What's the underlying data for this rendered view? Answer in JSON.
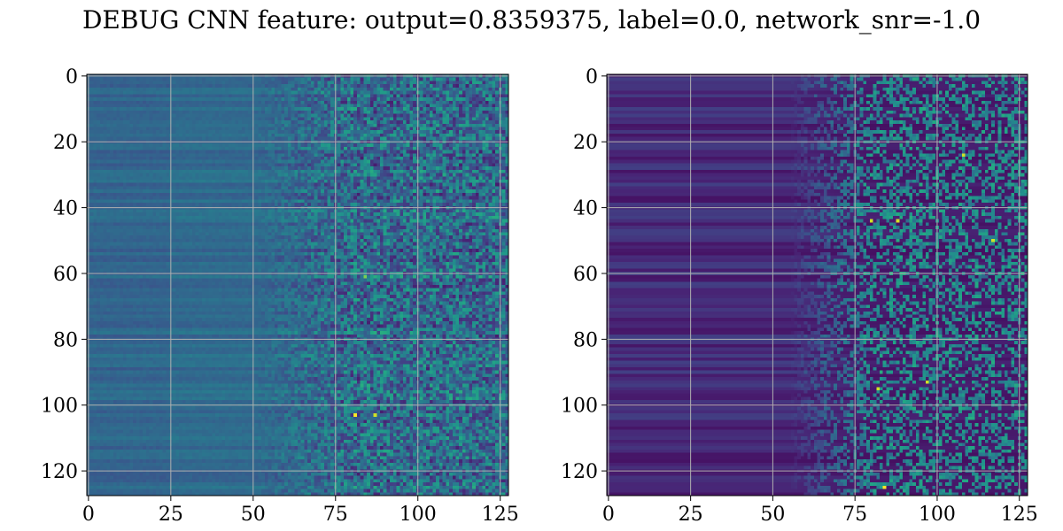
{
  "figure": {
    "title": "DEBUG CNN feature: output=0.8359375, label=0.0, network_snr=-1.0"
  },
  "chart_data": [
    {
      "type": "heatmap",
      "title": "",
      "xlabel": "",
      "ylabel": "",
      "colormap": "viridis",
      "shape": [
        128,
        128
      ],
      "xlim": [
        -0.5,
        127.5
      ],
      "ylim": [
        127.5,
        -0.5
      ],
      "xticks": [
        0,
        25,
        50,
        75,
        100,
        125
      ],
      "yticks": [
        0,
        20,
        40,
        60,
        80,
        100,
        120
      ],
      "grid": true,
      "description_of_values": "rows show horizontal banding; columns 0-50 nearly uniform low-mid intensity, columns 50-128 increasingly noisy with brighter speckles",
      "hotspots": [
        {
          "x": 81,
          "y": 103,
          "intensity": "max (yellow)"
        },
        {
          "x": 87,
          "y": 103,
          "intensity": "high (green-yellow)"
        },
        {
          "x": 84,
          "y": 61,
          "intensity": "high (green)"
        }
      ]
    },
    {
      "type": "heatmap",
      "title": "",
      "xlabel": "",
      "ylabel": "",
      "colormap": "viridis",
      "shape": [
        128,
        128
      ],
      "xlim": [
        -0.5,
        127.5
      ],
      "ylim": [
        127.5,
        -0.5
      ],
      "xticks": [
        0,
        25,
        50,
        75,
        100,
        125
      ],
      "yticks": [
        0,
        20,
        40,
        60,
        80,
        100,
        120
      ],
      "grid": true,
      "description_of_values": "mostly dark purple; columns 0-50 banded low values, columns 75-128 sparse bright speckles",
      "hotspots": [
        {
          "x": 84,
          "y": 125,
          "intensity": "max (yellow)"
        },
        {
          "x": 80,
          "y": 44,
          "intensity": "high (yellow)"
        },
        {
          "x": 88,
          "y": 44,
          "intensity": "high (yellow)"
        },
        {
          "x": 82,
          "y": 95,
          "intensity": "high (yellow)"
        },
        {
          "x": 97,
          "y": 93,
          "intensity": "high (yellow)"
        },
        {
          "x": 117,
          "y": 50,
          "intensity": "high (yellow)"
        },
        {
          "x": 108,
          "y": 24,
          "intensity": "high (green-yellow)"
        }
      ]
    }
  ]
}
